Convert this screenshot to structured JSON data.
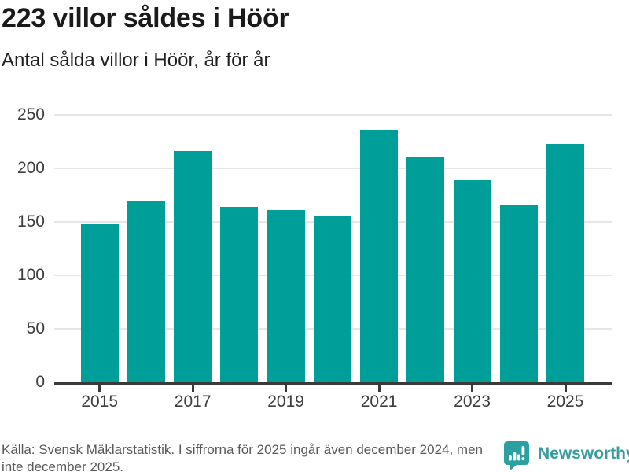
{
  "header": {
    "title": "223 villor såldes i Höör",
    "subtitle": "Antal sålda villor i Höör, år för år"
  },
  "chart_data": {
    "type": "bar",
    "title": "223 villor såldes i Höör",
    "subtitle": "Antal sålda villor i Höör, år för år",
    "categories": [
      "2015",
      "2016",
      "2017",
      "2018",
      "2019",
      "2020",
      "2021",
      "2022",
      "2023",
      "2024",
      "2025"
    ],
    "values": [
      148,
      170,
      216,
      164,
      161,
      155,
      236,
      210,
      189,
      166,
      223
    ],
    "xlabel": "",
    "ylabel": "",
    "ylim": [
      0,
      250
    ],
    "yticks": [
      0,
      50,
      100,
      150,
      200,
      250
    ],
    "xticks_shown": [
      "2015",
      "2017",
      "2019",
      "2021",
      "2023",
      "2025"
    ],
    "grid": true,
    "legend": false,
    "bar_color": "#009E99"
  },
  "footer": {
    "source_lines": [
      "Källa: Svensk Mäklarstatistik. I siffrorna för 2025 ingår även december 2024, men",
      "inte december 2025."
    ],
    "logo": {
      "text": "Newsworthy",
      "icon": "bar-chart-speech-bubble",
      "text_color": "#3A9C9C",
      "icon_color": "#2AA0A0"
    }
  },
  "colors": {
    "bar": "#009E99",
    "axis": "#3A3A3A",
    "gridline": "#E6E6E6",
    "title_text": "#1A1A1A",
    "tick_text": "#3E3E3E",
    "footer_text": "#595959"
  }
}
